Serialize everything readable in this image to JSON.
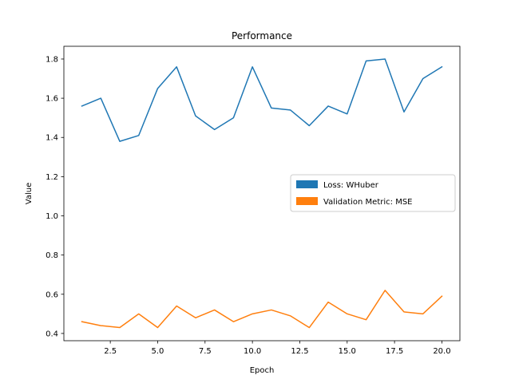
{
  "chart_data": {
    "type": "line",
    "title": "Performance",
    "xlabel": "Epoch",
    "ylabel": "Value",
    "xlim": [
      0.05,
      20.95
    ],
    "ylim": [
      0.363,
      1.865
    ],
    "xticks": [
      2.5,
      5.0,
      7.5,
      10.0,
      12.5,
      15.0,
      17.5,
      20.0
    ],
    "xtick_labels": [
      "2.5",
      "5.0",
      "7.5",
      "10.0",
      "12.5",
      "15.0",
      "17.5",
      "20.0"
    ],
    "yticks": [
      0.4,
      0.6,
      0.8,
      1.0,
      1.2,
      1.4,
      1.6,
      1.8
    ],
    "ytick_labels": [
      "0.4",
      "0.6",
      "0.8",
      "1.0",
      "1.2",
      "1.4",
      "1.6",
      "1.8"
    ],
    "grid": false,
    "legend_position": "center-right",
    "x": [
      1,
      2,
      3,
      4,
      5,
      6,
      7,
      8,
      9,
      10,
      11,
      12,
      13,
      14,
      15,
      16,
      17,
      18,
      19,
      20
    ],
    "series": [
      {
        "name": "Loss: WHuber",
        "color": "#1f77b4",
        "values": [
          1.56,
          1.6,
          1.38,
          1.41,
          1.65,
          1.76,
          1.51,
          1.44,
          1.5,
          1.76,
          1.55,
          1.54,
          1.46,
          1.56,
          1.52,
          1.79,
          1.8,
          1.53,
          1.7,
          1.76
        ]
      },
      {
        "name": "Validation Metric: MSE",
        "color": "#ff7f0e",
        "values": [
          0.46,
          0.44,
          0.43,
          0.5,
          0.43,
          0.54,
          0.48,
          0.52,
          0.46,
          0.5,
          0.52,
          0.49,
          0.43,
          0.56,
          0.5,
          0.47,
          0.62,
          0.51,
          0.5,
          0.59
        ]
      }
    ]
  }
}
